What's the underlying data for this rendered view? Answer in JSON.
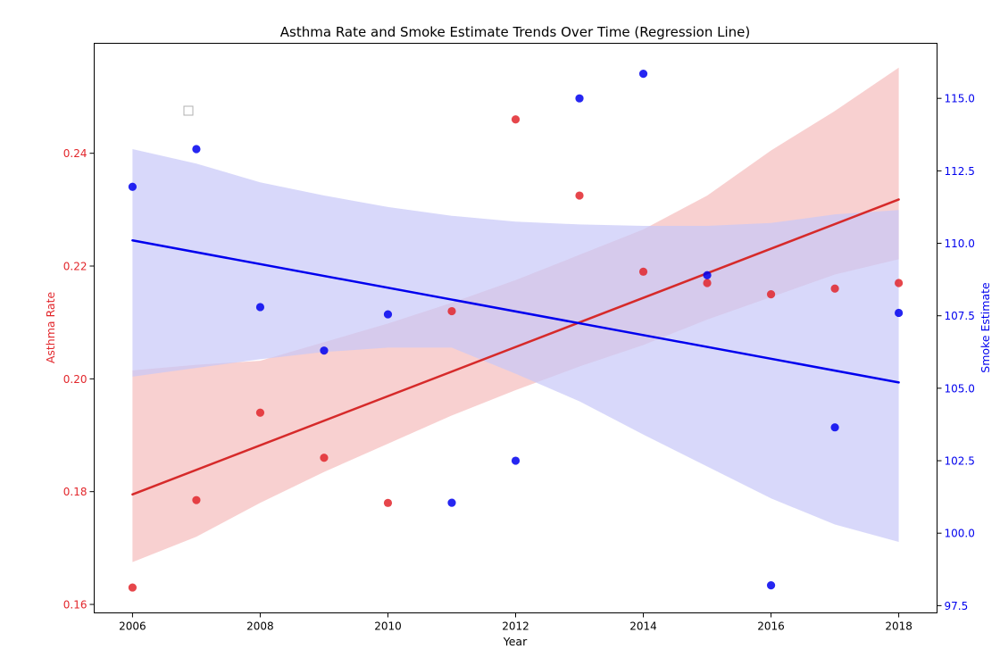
{
  "chart_data": {
    "type": "scatter",
    "title": "Asthma Rate and Smoke Estimate Trends Over Time (Regression Line)",
    "xlabel": "Year",
    "ylabel_left": "Asthma Rate",
    "ylabel_right": "Smoke Estimate",
    "xlim": [
      2005.4,
      2018.6
    ],
    "ylim_left": [
      0.1585,
      0.2595
    ],
    "ylim_right": [
      97.25,
      116.9
    ],
    "xticks": [
      2006,
      2008,
      2010,
      2012,
      2014,
      2016,
      2018
    ],
    "yticks_left": [
      0.16,
      0.18,
      0.2,
      0.22,
      0.24
    ],
    "yticks_left_labels": [
      "0.16",
      "0.18",
      "0.20",
      "0.22",
      "0.24"
    ],
    "yticks_right": [
      97.5,
      100.0,
      102.5,
      105.0,
      107.5,
      110.0,
      112.5,
      115.0
    ],
    "yticks_right_labels": [
      "97.5",
      "100.0",
      "102.5",
      "105.0",
      "107.5",
      "110.0",
      "112.5",
      "115.0"
    ],
    "grid": false,
    "legend": "empty-handle-top-left",
    "colors": {
      "asthma": "#e2262b",
      "asthma_band": "#f6c4c4",
      "smoke": "#0000ee",
      "smoke_band": "#c8c8f8"
    },
    "series": [
      {
        "key": "asthma",
        "axis": "left",
        "x": [
          2006,
          2007,
          2008,
          2009,
          2010,
          2011,
          2012,
          2013,
          2014,
          2015,
          2016,
          2017,
          2018
        ],
        "y": [
          0.163,
          0.1785,
          0.194,
          0.186,
          0.178,
          0.212,
          0.246,
          0.2325,
          0.219,
          0.217,
          0.215,
          0.216,
          0.217
        ],
        "regression": {
          "x": [
            2006,
            2018
          ],
          "y": [
            0.1795,
            0.2318
          ]
        },
        "ci_x": [
          2006,
          2007,
          2008,
          2009,
          2010,
          2011,
          2012,
          2013,
          2014,
          2015,
          2016,
          2017,
          2018
        ],
        "ci_upper": [
          0.2015,
          0.2025,
          0.2032,
          0.2065,
          0.2098,
          0.2135,
          0.2175,
          0.222,
          0.2265,
          0.2325,
          0.2405,
          0.2475,
          0.2552
        ],
        "ci_lower": [
          0.1675,
          0.172,
          0.178,
          0.1835,
          0.1885,
          0.1935,
          0.198,
          0.2022,
          0.206,
          0.2105,
          0.2145,
          0.2185,
          0.2212
        ]
      },
      {
        "key": "smoke",
        "axis": "right",
        "x": [
          2006,
          2007,
          2008,
          2009,
          2010,
          2011,
          2012,
          2013,
          2014,
          2015,
          2016,
          2017,
          2018
        ],
        "y": [
          111.95,
          113.25,
          107.8,
          106.3,
          107.55,
          101.05,
          102.5,
          115.0,
          115.85,
          108.9,
          98.2,
          103.65,
          107.6
        ],
        "regression": {
          "x": [
            2006,
            2018
          ],
          "y": [
            110.1,
            105.2
          ]
        },
        "ci_x": [
          2006,
          2007,
          2008,
          2009,
          2010,
          2011,
          2012,
          2013,
          2014,
          2015,
          2016,
          2017,
          2018
        ],
        "ci_upper": [
          113.25,
          112.75,
          112.1,
          111.65,
          111.25,
          110.95,
          110.75,
          110.65,
          110.6,
          110.6,
          110.7,
          111.0,
          111.15
        ],
        "ci_lower": [
          105.4,
          105.7,
          106.0,
          106.25,
          106.4,
          106.4,
          105.5,
          104.55,
          103.4,
          102.3,
          101.2,
          100.3,
          99.7
        ]
      }
    ]
  }
}
